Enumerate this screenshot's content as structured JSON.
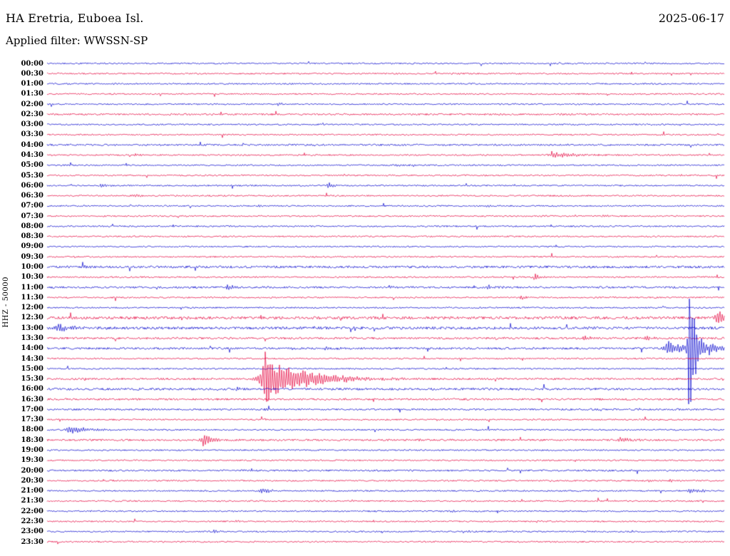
{
  "header": {
    "station_title": "HA Eretria, Euboea Isl.",
    "date": "2025-06-17",
    "filter_label": "Applied filter: WWSSN-SP"
  },
  "axis": {
    "channel_label": "HHZ - 50000"
  },
  "chart_data": {
    "type": "line",
    "subtype": "helicorder-seismogram",
    "title": "HA Eretria, Euboea Isl.",
    "date": "2025-06-17",
    "filter": "WWSSN-SP",
    "channel": "HHZ",
    "scale": 50000,
    "row_interval_minutes": 30,
    "legend_position": "none",
    "grid": false,
    "colors": {
      "even_row": "#0000cc",
      "odd_row": "#e4003c"
    },
    "rows": [
      "00:00",
      "00:30",
      "01:00",
      "01:30",
      "02:00",
      "02:30",
      "03:00",
      "03:30",
      "04:00",
      "04:30",
      "05:00",
      "05:30",
      "06:00",
      "06:30",
      "07:00",
      "07:30",
      "08:00",
      "08:30",
      "09:00",
      "09:30",
      "10:00",
      "10:30",
      "11:00",
      "11:30",
      "12:00",
      "12:30",
      "13:00",
      "13:30",
      "14:00",
      "14:30",
      "15:00",
      "15:30",
      "16:00",
      "16:30",
      "17:00",
      "17:30",
      "18:00",
      "18:30",
      "19:00",
      "19:30",
      "20:00",
      "20:30",
      "21:00",
      "21:30",
      "22:00",
      "22:30",
      "23:00",
      "23:30"
    ],
    "row_noise": {
      "02:30": 1.2,
      "04:00": 1.2,
      "10:00": 1.6,
      "11:00": 1.3,
      "12:30": 1.9,
      "13:00": 1.8,
      "13:30": 1.4,
      "14:00": 1.4,
      "15:30": 1.3,
      "16:00": 1.5,
      "16:30": 1.3,
      "17:00": 1.2,
      "18:30": 1.3,
      "20:00": 1.2
    },
    "events": [
      {
        "row": "02:00",
        "x": 0.34,
        "amp": 3,
        "dur": 0.006
      },
      {
        "row": "04:30",
        "x": 0.13,
        "amp": 2.5,
        "dur": 0.008
      },
      {
        "row": "04:30",
        "x": 0.745,
        "amp": 5,
        "dur": 0.03
      },
      {
        "row": "05:00",
        "x": 0.515,
        "amp": 2.5,
        "dur": 0.01
      },
      {
        "row": "06:00",
        "x": 0.08,
        "amp": 4.5,
        "dur": 0.012
      },
      {
        "row": "06:00",
        "x": 0.415,
        "amp": 5,
        "dur": 0.01
      },
      {
        "row": "06:30",
        "x": 0.125,
        "amp": 2.5,
        "dur": 0.01
      },
      {
        "row": "07:00",
        "x": 0.31,
        "amp": 2,
        "dur": 0.006
      },
      {
        "row": "07:00",
        "x": 0.65,
        "amp": 1.8,
        "dur": 0.006
      },
      {
        "row": "07:30",
        "x": 0.82,
        "amp": 2.5,
        "dur": 0.008
      },
      {
        "row": "08:30",
        "x": 0.35,
        "amp": 1.8,
        "dur": 0.006
      },
      {
        "row": "10:00",
        "x": 0.055,
        "amp": 2,
        "dur": 0.008
      },
      {
        "row": "10:30",
        "x": 0.095,
        "amp": 2,
        "dur": 0.006
      },
      {
        "row": "10:30",
        "x": 0.72,
        "amp": 10,
        "dur": 0.005
      },
      {
        "row": "11:00",
        "x": 0.265,
        "amp": 4,
        "dur": 0.014
      },
      {
        "row": "11:00",
        "x": 0.505,
        "amp": 2.5,
        "dur": 0.01
      },
      {
        "row": "11:00",
        "x": 0.65,
        "amp": 4.5,
        "dur": 0.01
      },
      {
        "row": "11:30",
        "x": 0.7,
        "amp": 4,
        "dur": 0.008
      },
      {
        "row": "12:30",
        "x": 0.99,
        "amp": 14,
        "dur": 0.018
      },
      {
        "row": "13:00",
        "x": 0.013,
        "amp": 6,
        "dur": 0.022
      },
      {
        "row": "13:30",
        "x": 0.793,
        "amp": 5,
        "dur": 0.012
      },
      {
        "row": "13:30",
        "x": 0.883,
        "amp": 3.5,
        "dur": 0.008
      },
      {
        "row": "14:00",
        "x": 0.41,
        "amp": 3.5,
        "dur": 0.012
      },
      {
        "row": "14:00",
        "x": 0.915,
        "amp": 12,
        "dur": 0.025
      },
      {
        "row": "14:00",
        "x": 0.948,
        "amp": 132,
        "dur": 0.008
      },
      {
        "row": "14:00",
        "x": 0.978,
        "amp": 11,
        "dur": 0.015
      },
      {
        "row": "15:30",
        "x": 0.322,
        "amp": 30,
        "dur": 0.06
      },
      {
        "row": "15:30",
        "x": 0.322,
        "amp": 46,
        "dur": 0.004
      },
      {
        "row": "16:00",
        "x": 0.28,
        "amp": 3,
        "dur": 0.005
      },
      {
        "row": "16:30",
        "x": 0.322,
        "amp": 2.5,
        "dur": 0.008
      },
      {
        "row": "17:00",
        "x": 0.322,
        "amp": 1.8,
        "dur": 0.006
      },
      {
        "row": "18:00",
        "x": 0.031,
        "amp": 7,
        "dur": 0.026
      },
      {
        "row": "18:00",
        "x": 0.623,
        "amp": 2,
        "dur": 0.006
      },
      {
        "row": "18:30",
        "x": 0.23,
        "amp": 9,
        "dur": 0.016
      },
      {
        "row": "18:30",
        "x": 0.55,
        "amp": 2,
        "dur": 0.006
      },
      {
        "row": "18:30",
        "x": 0.845,
        "amp": 4,
        "dur": 0.016
      },
      {
        "row": "19:30",
        "x": 0.78,
        "amp": 2,
        "dur": 0.008
      },
      {
        "row": "20:00",
        "x": 0.3,
        "amp": 2.5,
        "dur": 0.005
      },
      {
        "row": "20:30",
        "x": 0.887,
        "amp": 2,
        "dur": 0.008
      },
      {
        "row": "20:30",
        "x": 0.92,
        "amp": 1.8,
        "dur": 0.006
      },
      {
        "row": "21:00",
        "x": 0.315,
        "amp": 5,
        "dur": 0.013
      },
      {
        "row": "21:00",
        "x": 0.945,
        "amp": 4,
        "dur": 0.018
      },
      {
        "row": "22:00",
        "x": 0.593,
        "amp": 2,
        "dur": 0.008
      },
      {
        "row": "22:30",
        "x": 0.278,
        "amp": 2.5,
        "dur": 0.005
      },
      {
        "row": "23:00",
        "x": 0.246,
        "amp": 3,
        "dur": 0.012
      },
      {
        "row": "23:00",
        "x": 0.615,
        "amp": 2.5,
        "dur": 0.01
      }
    ]
  }
}
